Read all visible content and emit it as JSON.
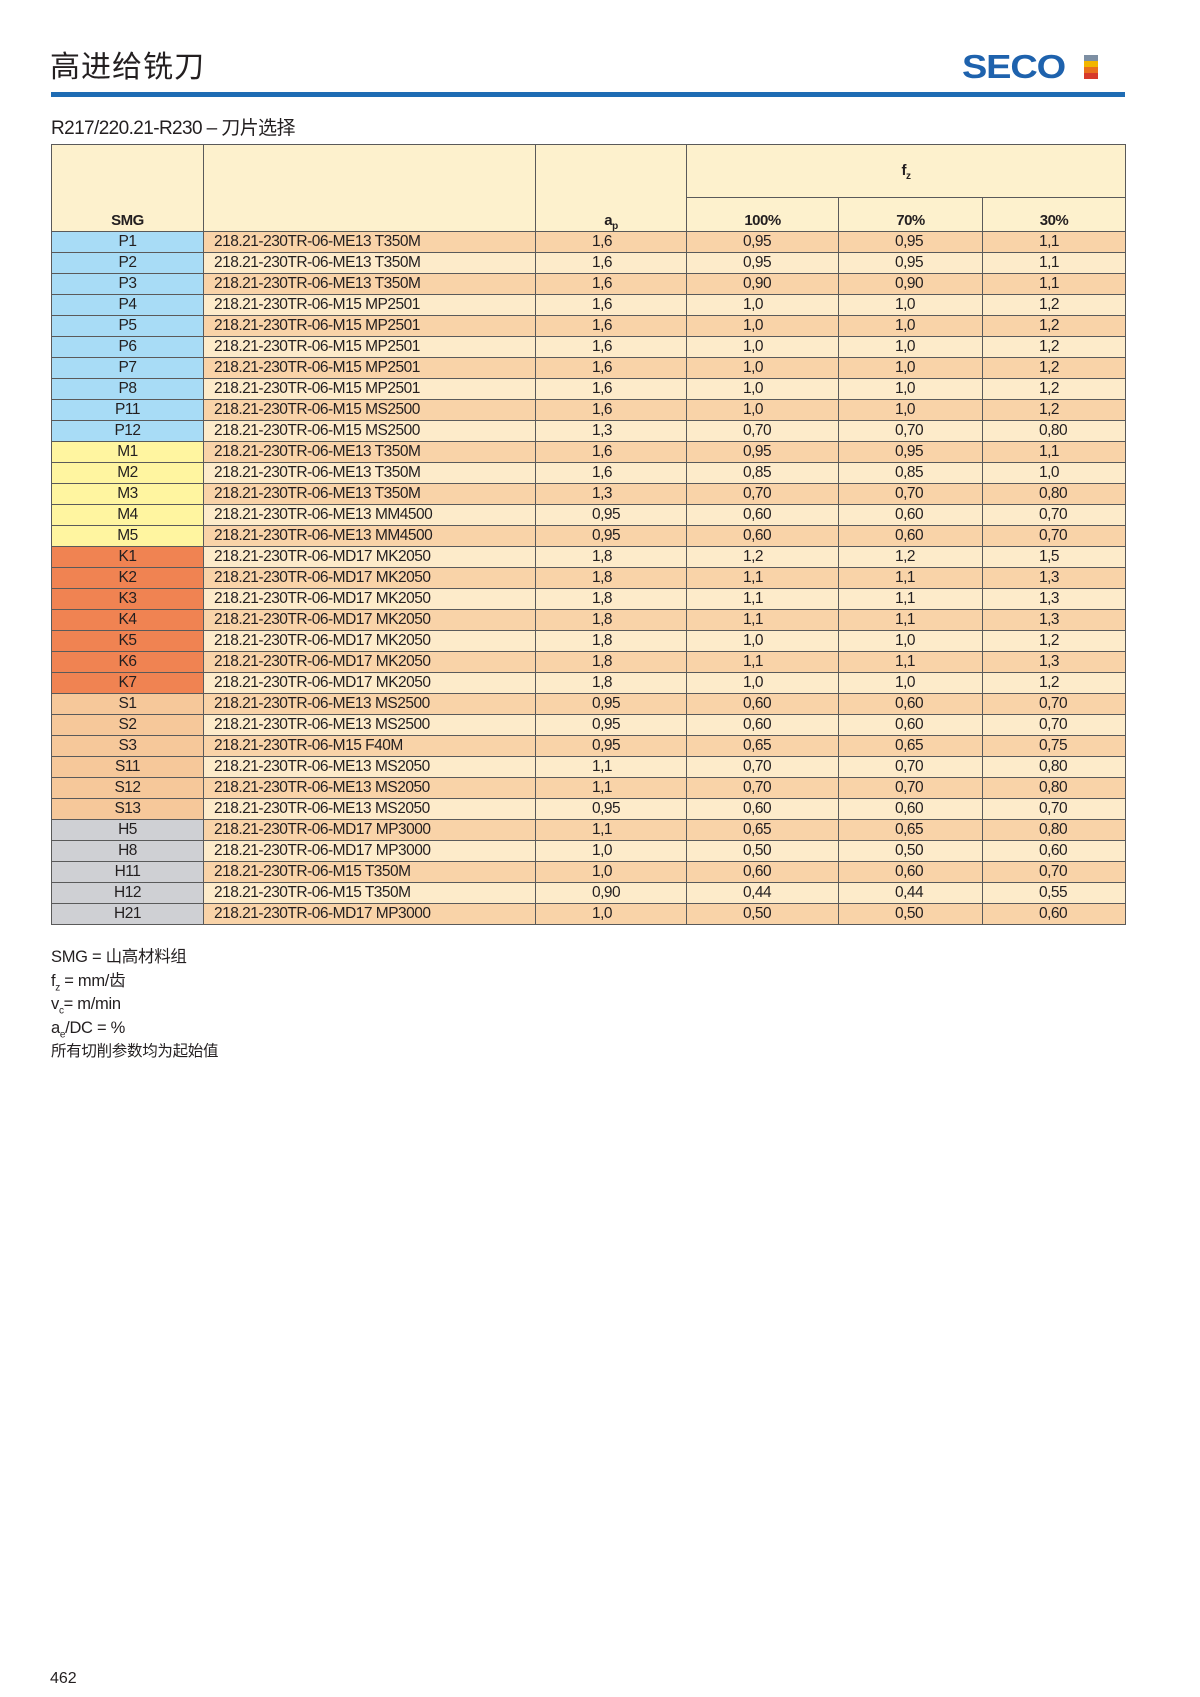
{
  "header": {
    "title": "高进给铣刀",
    "logo_text": "SECO",
    "logo_colors": [
      "#7d8fa3",
      "#f2b600",
      "#e9701e",
      "#d73a2b"
    ],
    "rule_color": "#1e6cb4"
  },
  "subtitle": "R217/220.21-R230 – 刀片选择",
  "table": {
    "headers": {
      "smg": "SMG",
      "insert": "",
      "ap_main": "a",
      "ap_sub": "p",
      "fz_main": "f",
      "fz_sub": "z",
      "fz_cols": [
        "100%",
        "70%",
        "30%"
      ]
    },
    "group_colors": {
      "P": "#a8dcf6",
      "M": "#fff5a0",
      "K": "#f08352",
      "S": "#f6c89a",
      "H": "#cfd0d4"
    },
    "rows": [
      {
        "smg": "P1",
        "insert": "218.21-230TR-06-ME13 T350M",
        "ap": "1,6",
        "fz100": "0,95",
        "fz70": "0,95",
        "fz30": "1,1"
      },
      {
        "smg": "P2",
        "insert": "218.21-230TR-06-ME13 T350M",
        "ap": "1,6",
        "fz100": "0,95",
        "fz70": "0,95",
        "fz30": "1,1"
      },
      {
        "smg": "P3",
        "insert": "218.21-230TR-06-ME13 T350M",
        "ap": "1,6",
        "fz100": "0,90",
        "fz70": "0,90",
        "fz30": "1,1"
      },
      {
        "smg": "P4",
        "insert": "218.21-230TR-06-M15 MP2501",
        "ap": "1,6",
        "fz100": "1,0",
        "fz70": "1,0",
        "fz30": "1,2"
      },
      {
        "smg": "P5",
        "insert": "218.21-230TR-06-M15 MP2501",
        "ap": "1,6",
        "fz100": "1,0",
        "fz70": "1,0",
        "fz30": "1,2"
      },
      {
        "smg": "P6",
        "insert": "218.21-230TR-06-M15 MP2501",
        "ap": "1,6",
        "fz100": "1,0",
        "fz70": "1,0",
        "fz30": "1,2"
      },
      {
        "smg": "P7",
        "insert": "218.21-230TR-06-M15 MP2501",
        "ap": "1,6",
        "fz100": "1,0",
        "fz70": "1,0",
        "fz30": "1,2"
      },
      {
        "smg": "P8",
        "insert": "218.21-230TR-06-M15 MP2501",
        "ap": "1,6",
        "fz100": "1,0",
        "fz70": "1,0",
        "fz30": "1,2"
      },
      {
        "smg": "P11",
        "insert": "218.21-230TR-06-M15 MS2500",
        "ap": "1,6",
        "fz100": "1,0",
        "fz70": "1,0",
        "fz30": "1,2"
      },
      {
        "smg": "P12",
        "insert": "218.21-230TR-06-M15 MS2500",
        "ap": "1,3",
        "fz100": "0,70",
        "fz70": "0,70",
        "fz30": "0,80"
      },
      {
        "smg": "M1",
        "insert": "218.21-230TR-06-ME13 T350M",
        "ap": "1,6",
        "fz100": "0,95",
        "fz70": "0,95",
        "fz30": "1,1"
      },
      {
        "smg": "M2",
        "insert": "218.21-230TR-06-ME13 T350M",
        "ap": "1,6",
        "fz100": "0,85",
        "fz70": "0,85",
        "fz30": "1,0"
      },
      {
        "smg": "M3",
        "insert": "218.21-230TR-06-ME13 T350M",
        "ap": "1,3",
        "fz100": "0,70",
        "fz70": "0,70",
        "fz30": "0,80"
      },
      {
        "smg": "M4",
        "insert": "218.21-230TR-06-ME13 MM4500",
        "ap": "0,95",
        "fz100": "0,60",
        "fz70": "0,60",
        "fz30": "0,70"
      },
      {
        "smg": "M5",
        "insert": "218.21-230TR-06-ME13 MM4500",
        "ap": "0,95",
        "fz100": "0,60",
        "fz70": "0,60",
        "fz30": "0,70"
      },
      {
        "smg": "K1",
        "insert": "218.21-230TR-06-MD17 MK2050",
        "ap": "1,8",
        "fz100": "1,2",
        "fz70": "1,2",
        "fz30": "1,5"
      },
      {
        "smg": "K2",
        "insert": "218.21-230TR-06-MD17 MK2050",
        "ap": "1,8",
        "fz100": "1,1",
        "fz70": "1,1",
        "fz30": "1,3"
      },
      {
        "smg": "K3",
        "insert": "218.21-230TR-06-MD17 MK2050",
        "ap": "1,8",
        "fz100": "1,1",
        "fz70": "1,1",
        "fz30": "1,3"
      },
      {
        "smg": "K4",
        "insert": "218.21-230TR-06-MD17 MK2050",
        "ap": "1,8",
        "fz100": "1,1",
        "fz70": "1,1",
        "fz30": "1,3"
      },
      {
        "smg": "K5",
        "insert": "218.21-230TR-06-MD17 MK2050",
        "ap": "1,8",
        "fz100": "1,0",
        "fz70": "1,0",
        "fz30": "1,2"
      },
      {
        "smg": "K6",
        "insert": "218.21-230TR-06-MD17 MK2050",
        "ap": "1,8",
        "fz100": "1,1",
        "fz70": "1,1",
        "fz30": "1,3"
      },
      {
        "smg": "K7",
        "insert": "218.21-230TR-06-MD17 MK2050",
        "ap": "1,8",
        "fz100": "1,0",
        "fz70": "1,0",
        "fz30": "1,2"
      },
      {
        "smg": "S1",
        "insert": "218.21-230TR-06-ME13 MS2500",
        "ap": "0,95",
        "fz100": "0,60",
        "fz70": "0,60",
        "fz30": "0,70"
      },
      {
        "smg": "S2",
        "insert": "218.21-230TR-06-ME13 MS2500",
        "ap": "0,95",
        "fz100": "0,60",
        "fz70": "0,60",
        "fz30": "0,70"
      },
      {
        "smg": "S3",
        "insert": "218.21-230TR-06-M15 F40M",
        "ap": "0,95",
        "fz100": "0,65",
        "fz70": "0,65",
        "fz30": "0,75"
      },
      {
        "smg": "S11",
        "insert": "218.21-230TR-06-ME13 MS2050",
        "ap": "1,1",
        "fz100": "0,70",
        "fz70": "0,70",
        "fz30": "0,80"
      },
      {
        "smg": "S12",
        "insert": "218.21-230TR-06-ME13 MS2050",
        "ap": "1,1",
        "fz100": "0,70",
        "fz70": "0,70",
        "fz30": "0,80"
      },
      {
        "smg": "S13",
        "insert": "218.21-230TR-06-ME13 MS2050",
        "ap": "0,95",
        "fz100": "0,60",
        "fz70": "0,60",
        "fz30": "0,70"
      },
      {
        "smg": "H5",
        "insert": "218.21-230TR-06-MD17 MP3000",
        "ap": "1,1",
        "fz100": "0,65",
        "fz70": "0,65",
        "fz30": "0,80"
      },
      {
        "smg": "H8",
        "insert": "218.21-230TR-06-MD17 MP3000",
        "ap": "1,0",
        "fz100": "0,50",
        "fz70": "0,50",
        "fz30": "0,60"
      },
      {
        "smg": "H11",
        "insert": "218.21-230TR-06-M15 T350M",
        "ap": "1,0",
        "fz100": "0,60",
        "fz70": "0,60",
        "fz30": "0,70"
      },
      {
        "smg": "H12",
        "insert": "218.21-230TR-06-M15 T350M",
        "ap": "0,90",
        "fz100": "0,44",
        "fz70": "0,44",
        "fz30": "0,55"
      },
      {
        "smg": "H21",
        "insert": "218.21-230TR-06-MD17 MP3000",
        "ap": "1,0",
        "fz100": "0,50",
        "fz70": "0,50",
        "fz30": "0,60"
      }
    ]
  },
  "notes": {
    "smg": "SMG = 山高材料组",
    "fz_main": "f",
    "fz_sub": "z",
    "fz_rest": " = mm/齿",
    "vc_main": "v",
    "vc_sub": "c",
    "vc_rest": "= m/min",
    "ae_main": "a",
    "ae_sub": "e",
    "ae_rest": "/DC = %",
    "start_values": "所有切削参数均为起始值"
  },
  "page_number": "462"
}
